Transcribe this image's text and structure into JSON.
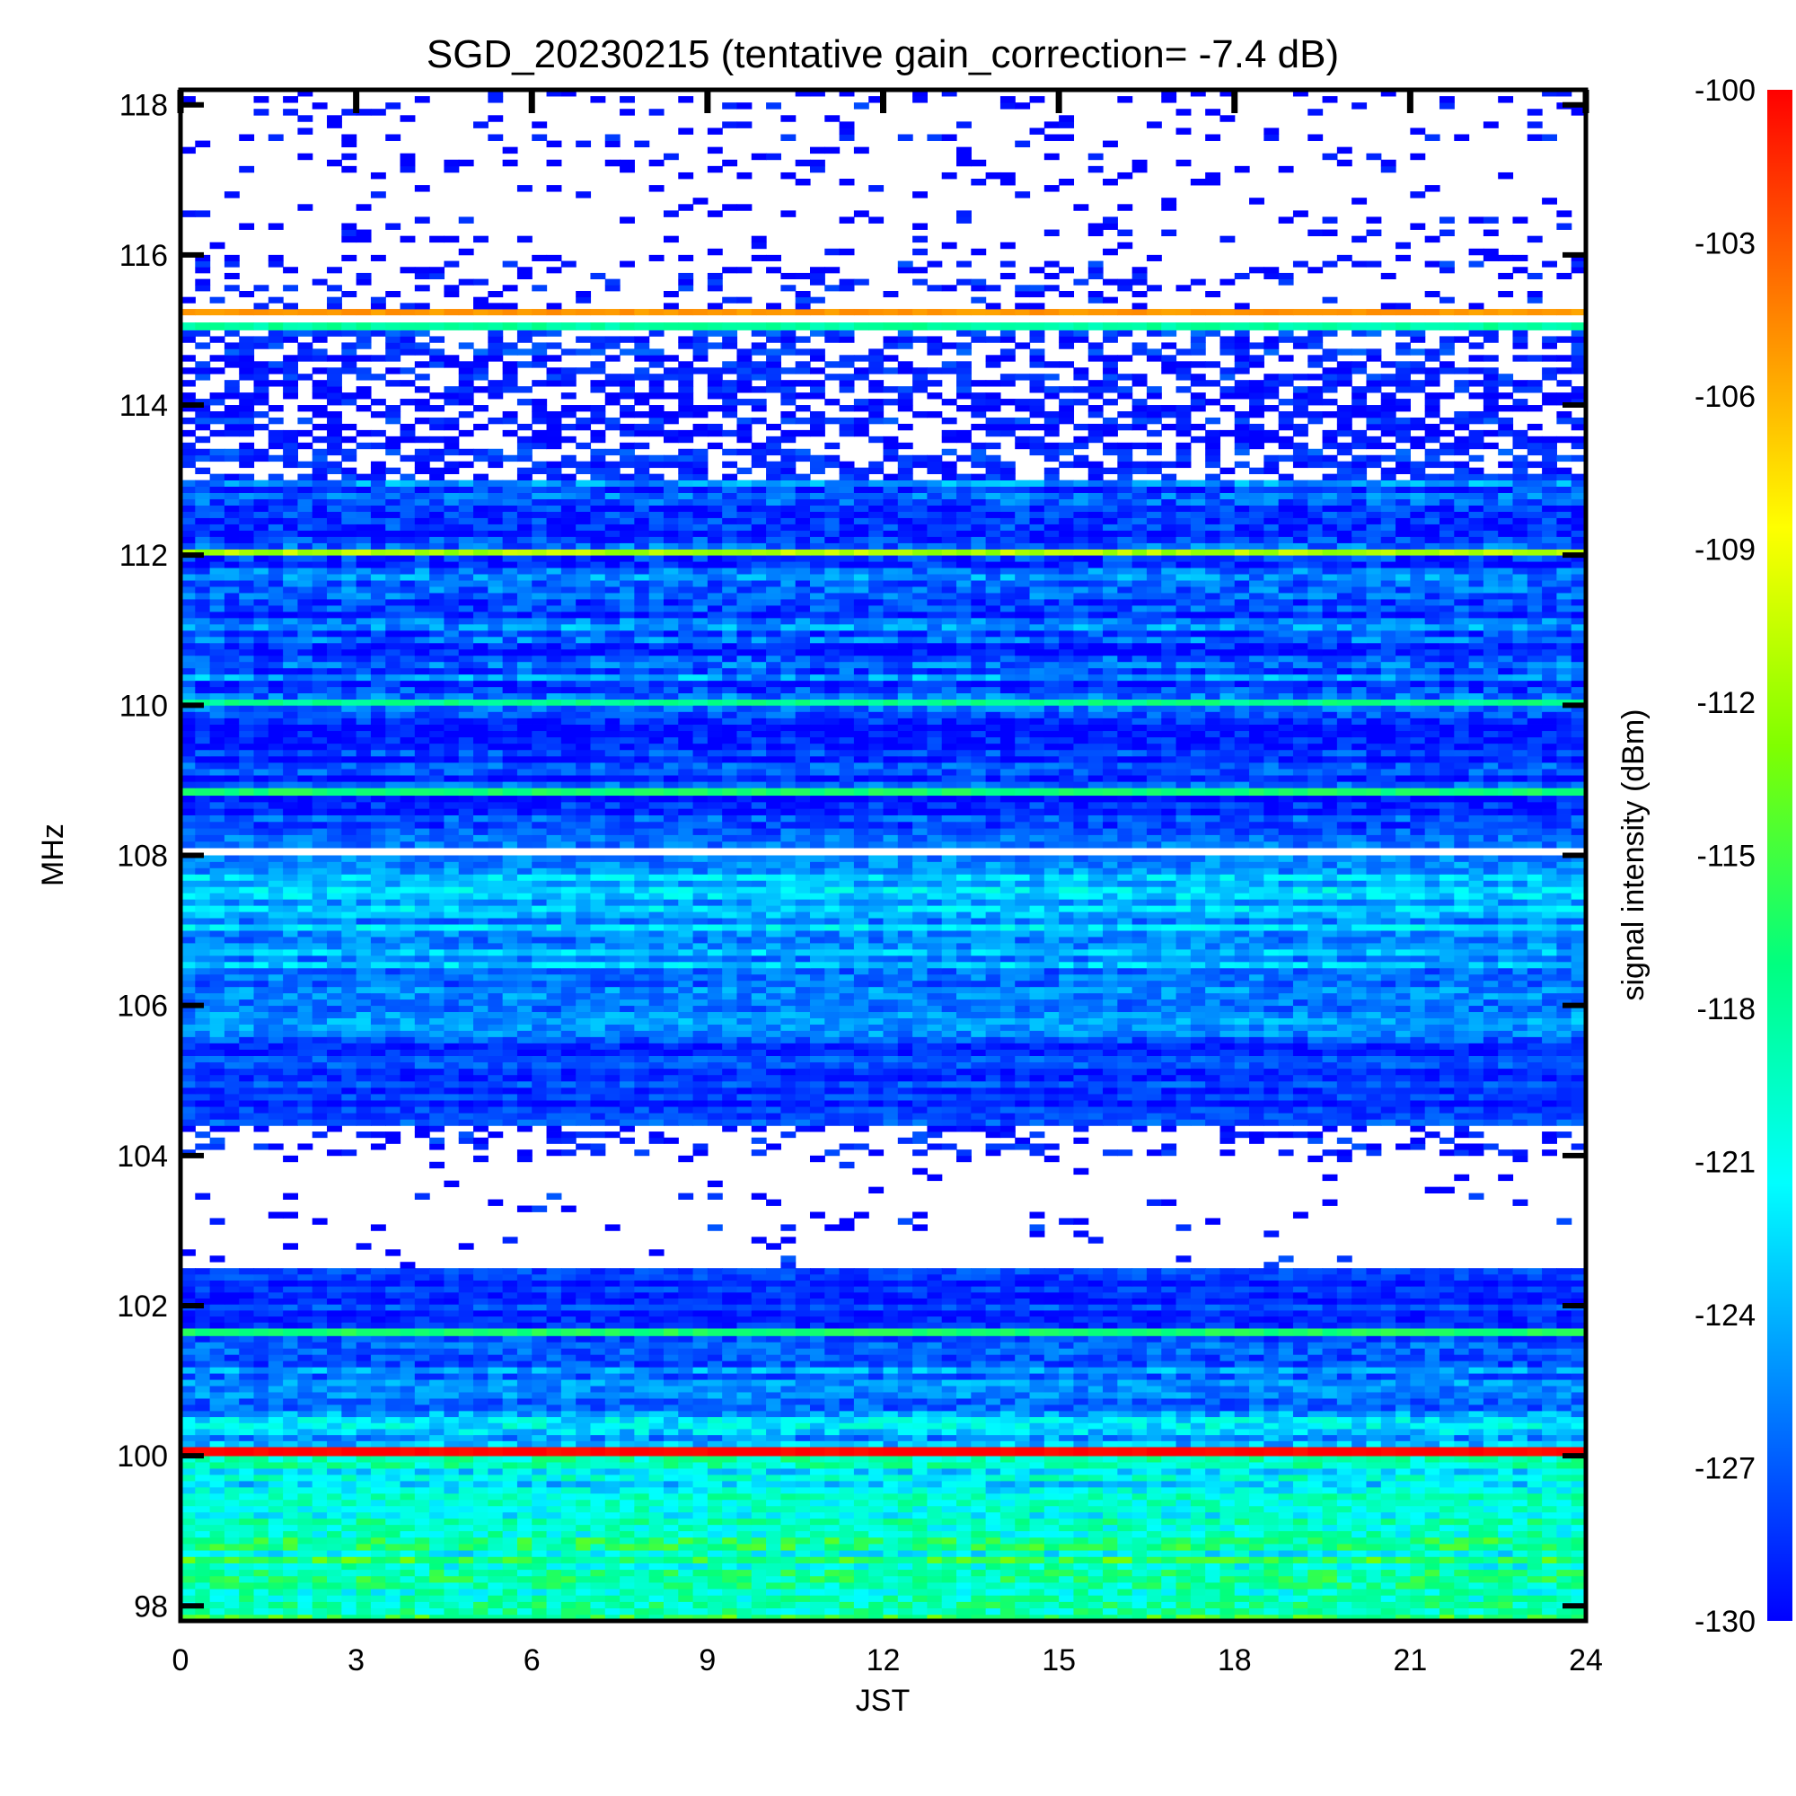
{
  "chart_data": {
    "type": "heatmap",
    "title": "SGD_20230215 (tentative gain_correction= -7.4 dB)",
    "xlabel": "JST",
    "ylabel": "MHz",
    "colorbar_label": "signal intensity (dBm)",
    "xlim": [
      0,
      24
    ],
    "ylim": [
      97.8,
      118.2
    ],
    "clim": [
      -130,
      -100
    ],
    "x_ticks": [
      "0",
      "3",
      "6",
      "9",
      "12",
      "15",
      "18",
      "21",
      "24"
    ],
    "x_tick_values": [
      0,
      3,
      6,
      9,
      12,
      15,
      18,
      21,
      24
    ],
    "y_ticks": [
      "98",
      "100",
      "102",
      "104",
      "106",
      "108",
      "110",
      "112",
      "114",
      "116",
      "118"
    ],
    "y_tick_values": [
      98,
      100,
      102,
      104,
      106,
      108,
      110,
      112,
      114,
      116,
      118
    ],
    "colorbar_ticks": [
      "-100",
      "-103",
      "-106",
      "-109",
      "-112",
      "-115",
      "-118",
      "-121",
      "-124",
      "-127",
      "-130"
    ],
    "colorbar_tick_values": [
      -100,
      -103,
      -106,
      -109,
      -112,
      -115,
      -118,
      -121,
      -124,
      -127,
      -130
    ],
    "colorscale": [
      "#0000ff",
      "#0080ff",
      "#00ffff",
      "#00ff80",
      "#80ff00",
      "#ffff00",
      "#ff8000",
      "#ff0000"
    ],
    "bands": [
      {
        "from": 97.8,
        "to": 99.0,
        "level": -118,
        "noise": 3
      },
      {
        "from": 99.0,
        "to": 100.0,
        "level": -121,
        "noise": 2.5
      },
      {
        "from": 100.0,
        "to": 100.12,
        "level": -100,
        "noise": 0.5
      },
      {
        "from": 100.12,
        "to": 100.6,
        "level": -123,
        "noise": 2.5
      },
      {
        "from": 100.6,
        "to": 101.6,
        "level": -126,
        "noise": 2
      },
      {
        "from": 101.6,
        "to": 101.7,
        "level": -116,
        "noise": 1
      },
      {
        "from": 101.7,
        "to": 102.5,
        "level": -128,
        "noise": 1.5
      },
      {
        "from": 102.5,
        "to": 104.0,
        "level": -131,
        "noise": 2,
        "sparse": 0.05
      },
      {
        "from": 104.0,
        "to": 104.4,
        "level": -129,
        "noise": 2,
        "sparse": 0.3
      },
      {
        "from": 104.4,
        "to": 105.5,
        "level": -128,
        "noise": 1.5
      },
      {
        "from": 105.5,
        "to": 106.5,
        "level": -126,
        "noise": 2
      },
      {
        "from": 106.5,
        "to": 108.0,
        "level": -124,
        "noise": 2
      },
      {
        "from": 108.0,
        "to": 108.1,
        "level": -135,
        "noise": 0
      },
      {
        "from": 108.1,
        "to": 108.8,
        "level": -128,
        "noise": 2
      },
      {
        "from": 108.8,
        "to": 108.9,
        "level": -116,
        "noise": 1
      },
      {
        "from": 108.9,
        "to": 110.0,
        "level": -128,
        "noise": 2
      },
      {
        "from": 110.0,
        "to": 110.08,
        "level": -117,
        "noise": 1
      },
      {
        "from": 110.08,
        "to": 112.0,
        "level": -127,
        "noise": 2.5
      },
      {
        "from": 112.0,
        "to": 112.08,
        "level": -110,
        "noise": 1.5
      },
      {
        "from": 112.08,
        "to": 113.0,
        "level": -127,
        "noise": 2.5
      },
      {
        "from": 113.0,
        "to": 115.0,
        "level": -129,
        "noise": 1.5,
        "sparse": 0.55
      },
      {
        "from": 115.0,
        "to": 115.1,
        "level": -118,
        "noise": 1
      },
      {
        "from": 115.2,
        "to": 115.28,
        "level": -105,
        "noise": 0.5
      },
      {
        "from": 115.28,
        "to": 116.0,
        "level": -130,
        "noise": 1.5,
        "sparse": 0.2
      },
      {
        "from": 116.0,
        "to": 118.2,
        "level": -130,
        "noise": 1.5,
        "sparse": 0.12
      }
    ]
  }
}
